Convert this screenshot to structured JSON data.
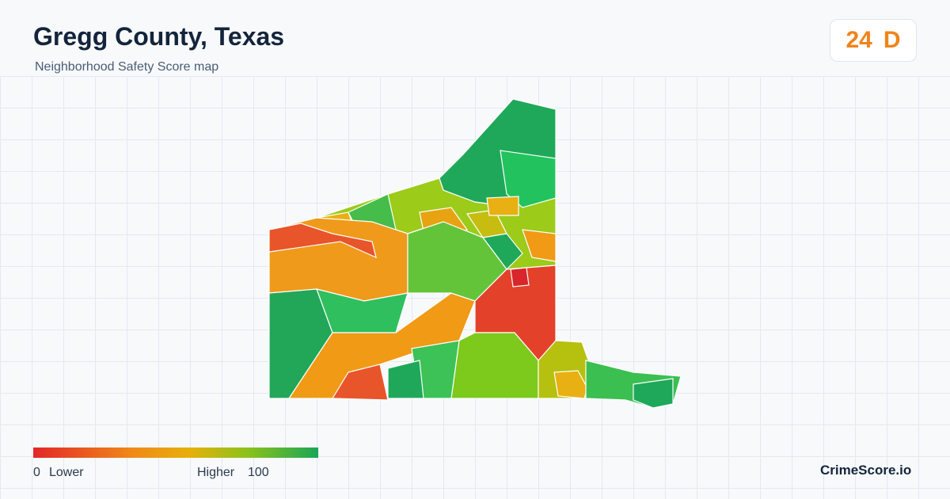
{
  "header": {
    "title": "Gregg County, Texas",
    "subtitle": "Neighborhood Safety Score map"
  },
  "score": {
    "value": 24,
    "grade": "D"
  },
  "legend": {
    "min": 0,
    "min_label": "Lower",
    "max_label": "Higher",
    "max": 100
  },
  "brand": "CrimeScore.io"
}
